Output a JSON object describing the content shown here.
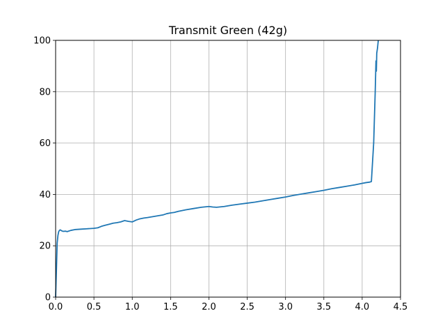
{
  "chart_data": {
    "type": "line",
    "title": "Transmit Green (42g)",
    "xlabel": "",
    "ylabel": "",
    "xlim": [
      0,
      4.5
    ],
    "ylim": [
      0,
      100
    ],
    "xticks": [
      0.0,
      0.5,
      1.0,
      1.5,
      2.0,
      2.5,
      3.0,
      3.5,
      4.0,
      4.5
    ],
    "xtick_labels": [
      "0.0",
      "0.5",
      "1.0",
      "1.5",
      "2.0",
      "2.5",
      "3.0",
      "3.5",
      "4.0",
      "4.5"
    ],
    "yticks": [
      0,
      20,
      40,
      60,
      80,
      100
    ],
    "ytick_labels": [
      "0",
      "20",
      "40",
      "60",
      "80",
      "100"
    ],
    "grid": true,
    "legend": "none",
    "series": [
      {
        "color": "#1f77b4",
        "x": [
          0.0,
          0.01,
          0.02,
          0.03,
          0.04,
          0.05,
          0.06,
          0.08,
          0.1,
          0.13,
          0.15,
          0.2,
          0.25,
          0.3,
          0.35,
          0.4,
          0.45,
          0.5,
          0.55,
          0.6,
          0.65,
          0.7,
          0.75,
          0.8,
          0.85,
          0.9,
          0.95,
          1.0,
          1.05,
          1.1,
          1.15,
          1.2,
          1.3,
          1.4,
          1.45,
          1.5,
          1.55,
          1.6,
          1.7,
          1.8,
          1.9,
          2.0,
          2.05,
          2.1,
          2.2,
          2.3,
          2.4,
          2.5,
          2.6,
          2.7,
          2.8,
          2.9,
          3.0,
          3.1,
          3.2,
          3.3,
          3.4,
          3.5,
          3.6,
          3.7,
          3.8,
          3.9,
          4.0,
          4.05,
          4.1,
          4.12,
          4.15,
          4.17,
          4.18,
          4.185,
          4.19,
          4.2,
          4.21
        ],
        "y": [
          0,
          10,
          21,
          24,
          25.5,
          26,
          26.2,
          25.8,
          25.6,
          25.7,
          25.5,
          26.0,
          26.3,
          26.4,
          26.5,
          26.6,
          26.7,
          26.8,
          27.0,
          27.6,
          28.0,
          28.4,
          28.8,
          29.0,
          29.3,
          29.8,
          29.5,
          29.3,
          30.0,
          30.5,
          30.8,
          31.0,
          31.5,
          32.0,
          32.5,
          32.8,
          33.0,
          33.4,
          34.0,
          34.5,
          35.0,
          35.3,
          35.1,
          35.0,
          35.3,
          35.8,
          36.2,
          36.6,
          37.0,
          37.5,
          38.0,
          38.5,
          39.0,
          39.6,
          40.1,
          40.6,
          41.1,
          41.6,
          42.2,
          42.7,
          43.2,
          43.7,
          44.3,
          44.6,
          44.8,
          45.0,
          60.0,
          80.0,
          92.0,
          88.0,
          95.0,
          97.0,
          100.0
        ]
      }
    ]
  }
}
